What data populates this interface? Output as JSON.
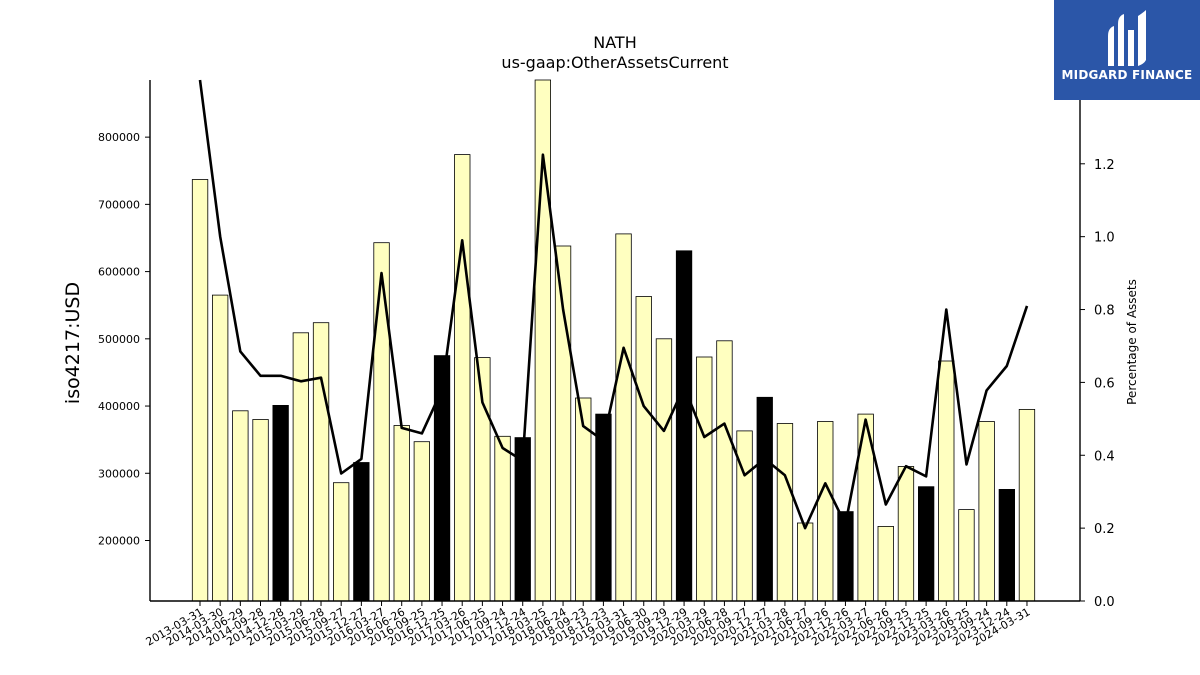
{
  "chart_data": {
    "type": "bar",
    "title": "NATH",
    "subtitle": "us-gaap:OtherAssetsCurrent",
    "ylabel": "iso4217:USD",
    "y2label": "Percentage of Assets",
    "ylim": [
      110000,
      885000
    ],
    "y2lim": [
      0.0,
      1.43
    ],
    "yticks": [
      200000,
      300000,
      400000,
      500000,
      600000,
      700000,
      800000
    ],
    "y2ticks": [
      0.0,
      0.2,
      0.4,
      0.6,
      0.8,
      1.0,
      1.2
    ],
    "categories": [
      "2013-03-31",
      "2014-03-30",
      "2014-06-29",
      "2014-09-28",
      "2014-12-28",
      "2015-03-29",
      "2015-06-28",
      "2015-09-27",
      "2015-12-27",
      "2016-03-27",
      "2016-06-26",
      "2016-09-25",
      "2016-12-25",
      "2017-03-26",
      "2017-06-25",
      "2017-09-24",
      "2017-12-24",
      "2018-03-25",
      "2018-06-24",
      "2018-09-23",
      "2018-12-23",
      "2019-03-31",
      "2019-06-30",
      "2019-09-29",
      "2019-12-29",
      "2020-03-29",
      "2020-06-28",
      "2020-09-27",
      "2020-12-27",
      "2021-03-28",
      "2021-06-27",
      "2021-09-26",
      "2021-12-26",
      "2022-03-27",
      "2022-06-26",
      "2022-09-25",
      "2022-12-25",
      "2023-03-26",
      "2023-06-25",
      "2023-09-24",
      "2023-12-24",
      "2024-03-31"
    ],
    "values": [
      737000,
      565000,
      393000,
      380000,
      401000,
      509000,
      524000,
      286000,
      316000,
      643000,
      371000,
      347000,
      475000,
      774000,
      472000,
      355000,
      353000,
      885000,
      638000,
      412000,
      388000,
      656000,
      563000,
      500000,
      631000,
      473000,
      497000,
      363000,
      413000,
      374000,
      226000,
      377000,
      243000,
      388000,
      221000,
      310000,
      280000,
      467000,
      246000,
      377000,
      276000,
      395000
    ],
    "highlight": [
      false,
      false,
      false,
      false,
      true,
      false,
      false,
      false,
      true,
      false,
      false,
      false,
      true,
      false,
      false,
      false,
      true,
      false,
      false,
      false,
      true,
      false,
      false,
      false,
      true,
      false,
      false,
      false,
      true,
      false,
      false,
      false,
      true,
      false,
      false,
      false,
      true,
      false,
      false,
      false,
      true,
      false
    ],
    "line_values": [
      1.43,
      1.0,
      0.685,
      0.618,
      0.618,
      0.603,
      0.613,
      0.35,
      0.39,
      0.9,
      0.475,
      0.46,
      0.58,
      0.99,
      0.545,
      0.42,
      0.385,
      1.225,
      0.8,
      0.48,
      0.44,
      0.695,
      0.535,
      0.467,
      0.588,
      0.45,
      0.487,
      0.345,
      0.39,
      0.345,
      0.2,
      0.323,
      0.21,
      0.498,
      0.265,
      0.37,
      0.342,
      0.8,
      0.375,
      0.578,
      0.645,
      0.81
    ],
    "colors": {
      "bar": "#ffffc0",
      "bar_highlight": "#000000",
      "line": "#000000"
    }
  },
  "logo": {
    "text": "MIDGARD FINANCE",
    "background": "#2b56a8"
  }
}
